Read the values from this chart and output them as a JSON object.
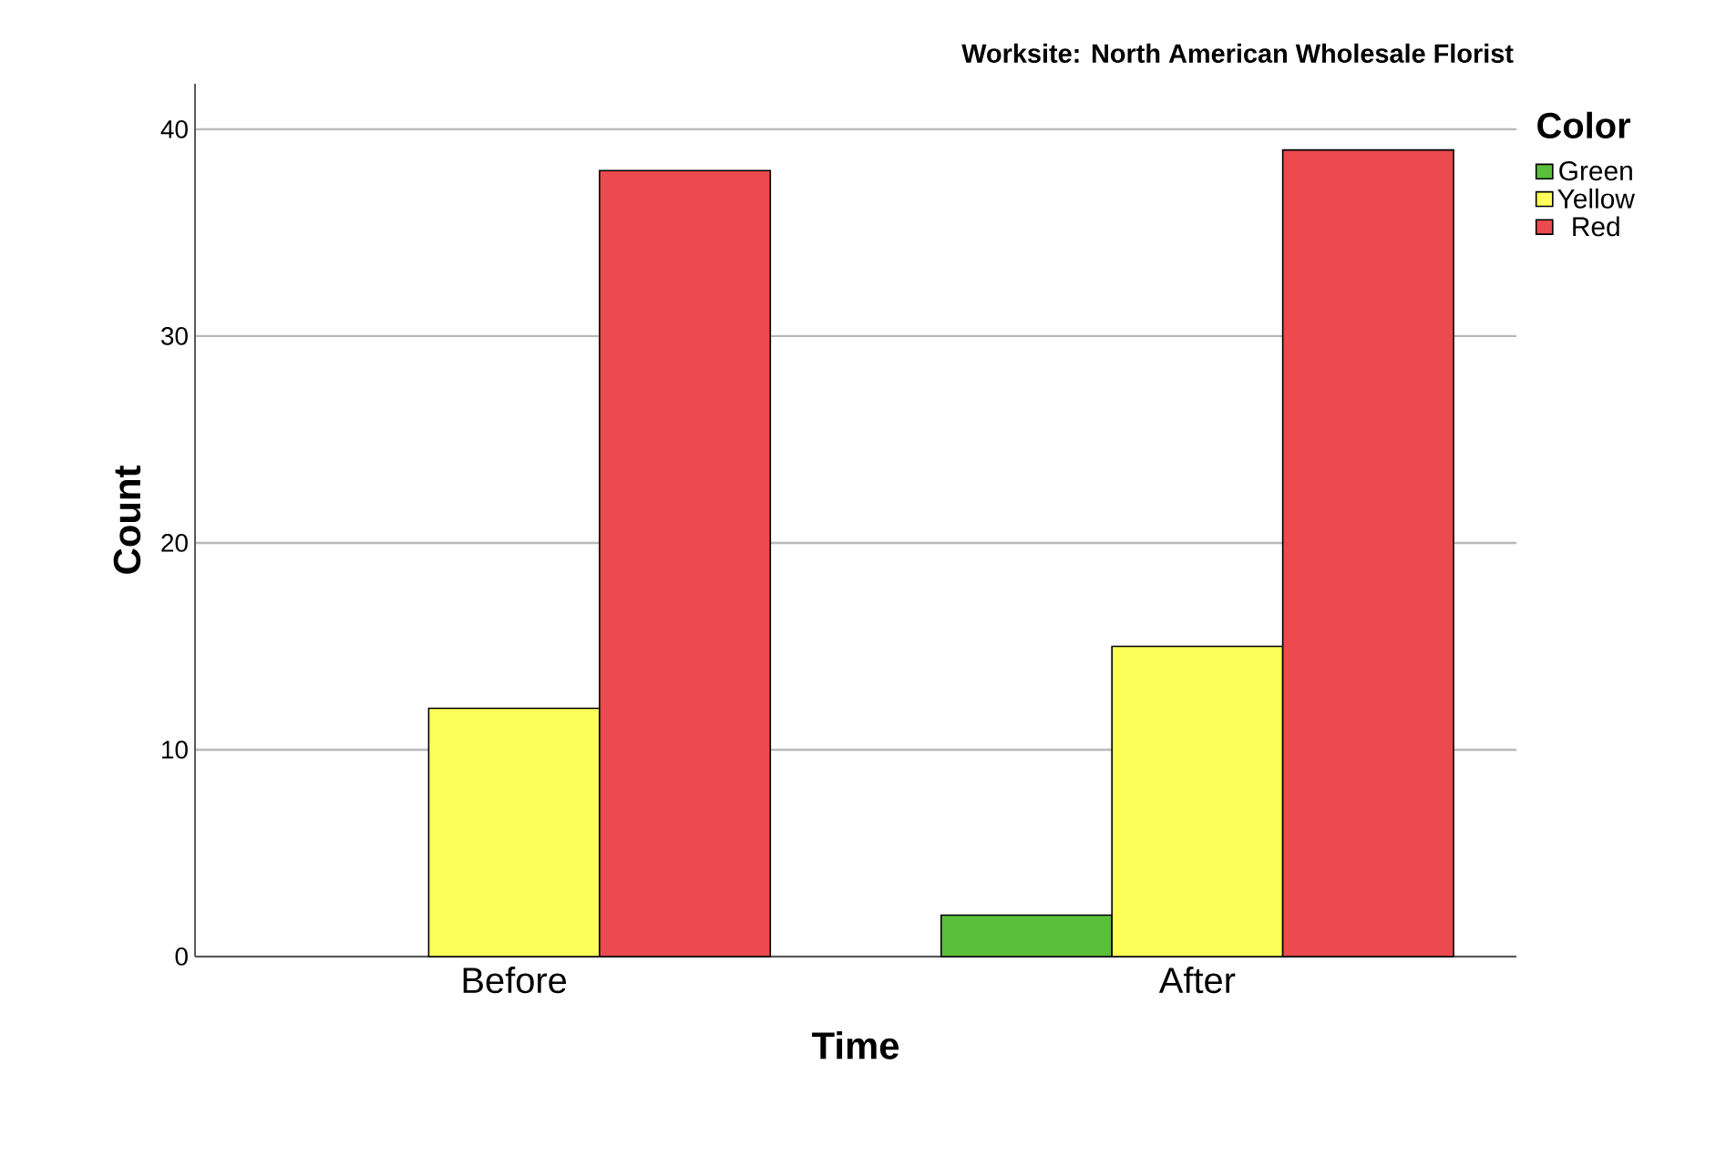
{
  "chart_data": {
    "type": "bar",
    "title": "Worksite: North American Wholesale Florist",
    "xlabel": "Time",
    "ylabel": "Count",
    "legend_title": "Color",
    "categories": [
      "Before",
      "After"
    ],
    "series": [
      {
        "name": "Green",
        "color": "#5abf3a",
        "values": [
          null,
          2
        ]
      },
      {
        "name": "Yellow",
        "color": "#ffff5a",
        "values": [
          12,
          15
        ]
      },
      {
        "name": "Red",
        "color": "#eb4a4e",
        "values": [
          38,
          39
        ]
      }
    ],
    "ylim": [
      0,
      42.2
    ],
    "yticks": [
      0,
      10,
      20,
      30,
      40
    ],
    "grid": "y",
    "legend": "top right"
  }
}
